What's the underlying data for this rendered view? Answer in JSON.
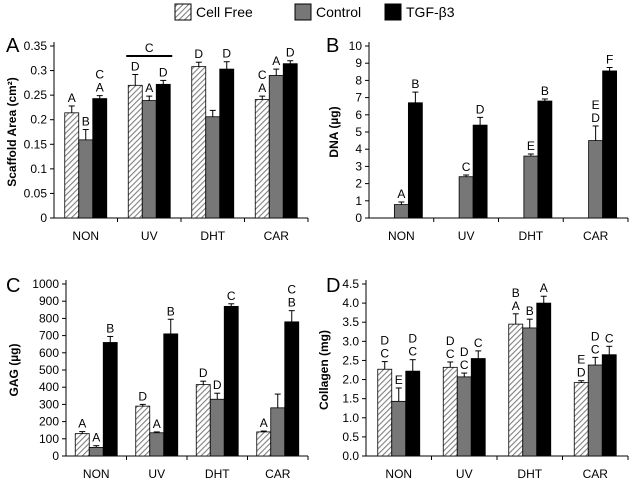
{
  "legend": {
    "items": [
      {
        "label": "Cell Free",
        "fill": "hatch"
      },
      {
        "label": "Control",
        "fill": "#777777"
      },
      {
        "label": "TGF-β3",
        "fill": "#000000"
      }
    ]
  },
  "colors": {
    "control": "#777777",
    "tgf": "#000000",
    "axis": "#000000"
  },
  "chart_data": [
    {
      "type": "bar",
      "panel_letter": "A",
      "title": "",
      "xlabel": "",
      "ylabel": "Scaffold Area (cm²)",
      "categories": [
        "NON",
        "UV",
        "DHT",
        "CAR"
      ],
      "ylim": [
        0,
        0.35
      ],
      "ytick_step": 0.05,
      "ytick_labels": [
        "0",
        "0.05",
        "0.1",
        "0.15",
        "0.2",
        "0.25",
        "0.3",
        "0.35"
      ],
      "series": [
        {
          "name": "Cell Free",
          "values": [
            0.214,
            0.27,
            0.308,
            0.241
          ],
          "errors": [
            0.014,
            0.022,
            0.009,
            0.007
          ],
          "letters": [
            "A",
            "D",
            "D",
            "C\nA"
          ]
        },
        {
          "name": "Control",
          "values": [
            0.159,
            0.239,
            0.206,
            0.29
          ],
          "errors": [
            0.021,
            0.009,
            0.013,
            0.013
          ],
          "letters": [
            "B",
            "A",
            "",
            "A"
          ]
        },
        {
          "name": "TGF-β3",
          "values": [
            0.243,
            0.272,
            0.303,
            0.314
          ],
          "errors": [
            0.006,
            0.008,
            0.015,
            0.006
          ],
          "letters": [
            "C\nA",
            "D",
            "D",
            "D"
          ]
        }
      ],
      "group_annotation": {
        "label": "C",
        "category": "UV"
      }
    },
    {
      "type": "bar",
      "panel_letter": "B",
      "title": "",
      "xlabel": "",
      "ylabel": "DNA (µg)",
      "categories": [
        "NON",
        "UV",
        "DHT",
        "CAR"
      ],
      "ylim": [
        0,
        10
      ],
      "ytick_step": 1,
      "ytick_labels": [
        "0",
        "1",
        "2",
        "3",
        "4",
        "5",
        "6",
        "7",
        "8",
        "9",
        "10"
      ],
      "series": [
        {
          "name": "Cell Free",
          "values": [
            null,
            null,
            null,
            null
          ],
          "errors": [
            0,
            0,
            0,
            0
          ],
          "letters": [
            "",
            "",
            "",
            ""
          ]
        },
        {
          "name": "Control",
          "values": [
            0.78,
            2.4,
            3.6,
            4.5
          ],
          "errors": [
            0.15,
            0.1,
            0.12,
            0.85
          ],
          "letters": [
            "A",
            "C",
            "E",
            "E\nD"
          ]
        },
        {
          "name": "TGF-β3",
          "values": [
            6.7,
            5.4,
            6.8,
            8.55
          ],
          "errors": [
            0.62,
            0.45,
            0.12,
            0.2
          ],
          "letters": [
            "B",
            "D",
            "B",
            "F"
          ]
        }
      ]
    },
    {
      "type": "bar",
      "panel_letter": "C",
      "title": "",
      "xlabel": "",
      "ylabel": "GAG (µg)",
      "categories": [
        "NON",
        "UV",
        "DHT",
        "CAR"
      ],
      "ylim": [
        0,
        1000
      ],
      "ytick_step": 100,
      "ytick_labels": [
        "0",
        "100",
        "200",
        "300",
        "400",
        "500",
        "600",
        "700",
        "800",
        "900",
        "1000"
      ],
      "series": [
        {
          "name": "Cell Free",
          "values": [
            130,
            290,
            415,
            140
          ],
          "errors": [
            12,
            10,
            20,
            5
          ],
          "letters": [
            "A",
            "D",
            "D",
            "A"
          ]
        },
        {
          "name": "Control",
          "values": [
            50,
            135,
            330,
            280
          ],
          "errors": [
            10,
            5,
            35,
            80
          ],
          "letters": [
            "A",
            "A",
            "D",
            ""
          ]
        },
        {
          "name": "TGF-β3",
          "values": [
            660,
            710,
            870,
            780
          ],
          "errors": [
            35,
            85,
            15,
            65
          ],
          "letters": [
            "B",
            "B",
            "C",
            "C\nB"
          ]
        }
      ]
    },
    {
      "type": "bar",
      "panel_letter": "D",
      "title": "",
      "xlabel": "",
      "ylabel": "Collagen (mg)",
      "categories": [
        "NON",
        "UV",
        "DHT",
        "CAR"
      ],
      "ylim": [
        0,
        4.5
      ],
      "ytick_step": 0.5,
      "ytick_labels": [
        "0.0",
        "0.5",
        "1.0",
        "1.5",
        "2.0",
        "2.5",
        "3.0",
        "3.5",
        "4.0",
        "4.5"
      ],
      "series": [
        {
          "name": "Cell Free",
          "values": [
            2.27,
            2.32,
            3.45,
            1.92
          ],
          "errors": [
            0.2,
            0.14,
            0.27,
            0.05
          ],
          "letters": [
            "D\nC",
            "D\nC",
            "B\nA",
            "E\nD"
          ]
        },
        {
          "name": "Control",
          "values": [
            1.43,
            2.07,
            3.35,
            2.38
          ],
          "errors": [
            0.35,
            0.1,
            0.23,
            0.2
          ],
          "letters": [
            "E",
            "D\nC",
            "B",
            "D\nC"
          ]
        },
        {
          "name": "TGF-β3",
          "values": [
            2.22,
            2.55,
            4.0,
            2.65
          ],
          "errors": [
            0.3,
            0.2,
            0.18,
            0.22
          ],
          "letters": [
            "D\nC",
            "C",
            "A",
            "C"
          ]
        }
      ]
    }
  ]
}
